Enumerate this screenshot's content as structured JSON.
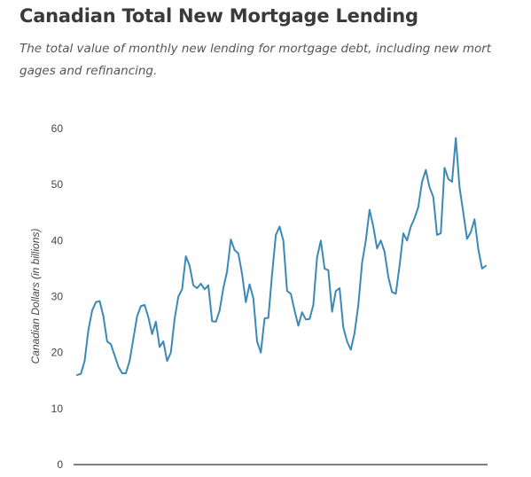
{
  "header": {
    "title": "Canadian Total New Mortgage Lending",
    "subtitle": "The total value of monthly new lending for mortgage debt, including new mortgages and refinancing."
  },
  "colors": {
    "line": "#3a8ab5",
    "axis": "#333333"
  },
  "chart_data": {
    "type": "line",
    "title": "Canadian Total New Mortgage Lending",
    "subtitle": "The total value of monthly new lending for mortgage debt, including new mortgages and refinancing.",
    "xlabel": "",
    "ylabel": "Canadian Dollars (in billions)",
    "ylim": [
      0,
      60
    ],
    "yticks": [
      0,
      10,
      20,
      30,
      40,
      50,
      60
    ],
    "grid": false,
    "legend": "none",
    "series": [
      {
        "values": [
          16.0,
          16.2,
          18.5,
          24.0,
          27.5,
          29.0,
          29.2,
          26.5,
          22.0,
          21.5,
          19.5,
          17.5,
          16.3,
          16.3,
          18.5,
          22.5,
          26.5,
          28.3,
          28.5,
          26.3,
          23.3,
          25.5,
          21.0,
          22.0,
          18.5,
          20.0,
          26.0,
          30.0,
          31.3,
          37.2,
          35.5,
          32.0,
          31.5,
          32.3,
          31.3,
          32.0,
          25.6,
          25.5,
          27.5,
          31.5,
          34.5,
          40.2,
          38.3,
          37.7,
          34.0,
          29.0,
          32.2,
          29.7,
          22.0,
          20.0,
          26.1,
          26.2,
          34.0,
          41.0,
          42.5,
          40.0,
          31.0,
          30.5,
          27.5,
          24.8,
          27.2,
          25.9,
          26.0,
          28.5,
          37.0,
          40.0,
          35.0,
          34.7,
          27.3,
          31.0,
          31.5,
          24.5,
          22.0,
          20.5,
          23.5,
          28.5,
          36.0,
          40.0,
          45.5,
          42.5,
          38.6,
          40.0,
          38.0,
          33.5,
          30.8,
          30.5,
          35.5,
          41.3,
          40.0,
          42.5,
          44.0,
          46.0,
          50.5,
          52.6,
          49.5,
          47.8,
          41.0,
          41.3,
          53.0,
          51.0,
          50.5,
          58.3,
          49.5,
          45.0,
          40.3,
          41.5,
          43.8,
          38.5,
          35.0,
          35.5
        ]
      }
    ]
  }
}
